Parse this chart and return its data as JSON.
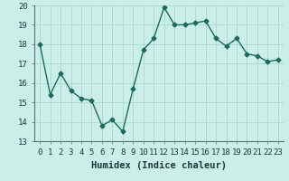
{
  "x": [
    0,
    1,
    2,
    3,
    4,
    5,
    6,
    7,
    8,
    9,
    10,
    11,
    12,
    13,
    14,
    15,
    16,
    17,
    18,
    19,
    20,
    21,
    22,
    23
  ],
  "y": [
    18.0,
    15.4,
    16.5,
    15.6,
    15.2,
    15.1,
    13.8,
    14.1,
    13.5,
    15.7,
    17.7,
    18.3,
    19.9,
    19.0,
    19.0,
    19.1,
    19.2,
    18.3,
    17.9,
    18.3,
    17.5,
    17.4,
    17.1,
    17.2
  ],
  "line_color": "#1a6b5e",
  "marker": "D",
  "marker_size": 2.5,
  "bg_color": "#cceee8",
  "grid_color": "#aad8d0",
  "xlabel": "Humidex (Indice chaleur)",
  "ylabel": "",
  "xlim": [
    -0.5,
    23.5
  ],
  "ylim": [
    13,
    20
  ],
  "yticks": [
    13,
    14,
    15,
    16,
    17,
    18,
    19,
    20
  ],
  "xtick_labels": [
    "0",
    "1",
    "2",
    "3",
    "4",
    "5",
    "6",
    "7",
    "8",
    "9",
    "10",
    "11",
    "12",
    "13",
    "14",
    "15",
    "16",
    "17",
    "18",
    "19",
    "20",
    "21",
    "22",
    "23"
  ],
  "xlabel_fontsize": 7.5,
  "tick_fontsize": 6.5,
  "line_width": 1.0
}
